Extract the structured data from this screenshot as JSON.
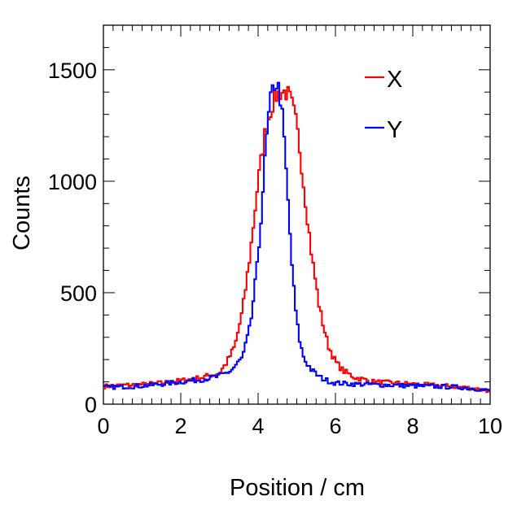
{
  "chart_data": {
    "type": "line",
    "title": "",
    "xlabel": "Position / cm",
    "ylabel": "Counts",
    "xlim": [
      0,
      10
    ],
    "ylim": [
      0,
      1700
    ],
    "x_ticks": [
      0,
      2,
      4,
      6,
      8,
      10
    ],
    "x_tick_labels": [
      "0",
      "2",
      "4",
      "6",
      "8",
      "10"
    ],
    "y_ticks": [
      0,
      500,
      1000,
      1500
    ],
    "y_tick_labels": [
      "0",
      "500",
      "1000",
      "1500"
    ],
    "bin_width": 0.05,
    "legend_position": "top-right",
    "series": [
      {
        "name": "X",
        "color": "#ff0000",
        "style": "step",
        "x": [
          0.0,
          0.5,
          1.0,
          1.5,
          2.0,
          2.5,
          3.0,
          3.2,
          3.4,
          3.6,
          3.8,
          4.0,
          4.2,
          4.4,
          4.5,
          4.6,
          4.7,
          4.8,
          4.9,
          5.0,
          5.1,
          5.2,
          5.4,
          5.6,
          5.8,
          6.0,
          6.2,
          6.5,
          7.0,
          7.5,
          8.0,
          8.5,
          9.0,
          9.5,
          10.0
        ],
        "y": [
          80,
          85,
          88,
          95,
          105,
          118,
          140,
          190,
          260,
          420,
          680,
          1000,
          1240,
          1360,
          1390,
          1400,
          1400,
          1385,
          1330,
          1250,
          1110,
          950,
          650,
          420,
          270,
          190,
          150,
          120,
          100,
          95,
          90,
          85,
          80,
          72,
          60
        ]
      },
      {
        "name": "Y",
        "color": "#0000ff",
        "style": "step",
        "x": [
          0.0,
          0.5,
          1.0,
          1.5,
          2.0,
          2.5,
          3.0,
          3.3,
          3.6,
          3.8,
          4.0,
          4.1,
          4.2,
          4.3,
          4.4,
          4.5,
          4.6,
          4.7,
          4.8,
          4.9,
          5.0,
          5.1,
          5.2,
          5.4,
          5.6,
          5.8,
          6.0,
          6.5,
          7.0,
          7.5,
          8.0,
          8.5,
          9.0,
          9.5,
          10.0
        ],
        "y": [
          75,
          78,
          82,
          90,
          100,
          110,
          125,
          150,
          210,
          350,
          650,
          900,
          1150,
          1340,
          1430,
          1440,
          1350,
          1120,
          830,
          560,
          370,
          260,
          200,
          150,
          120,
          105,
          95,
          90,
          88,
          85,
          82,
          80,
          78,
          72,
          60
        ]
      }
    ]
  }
}
